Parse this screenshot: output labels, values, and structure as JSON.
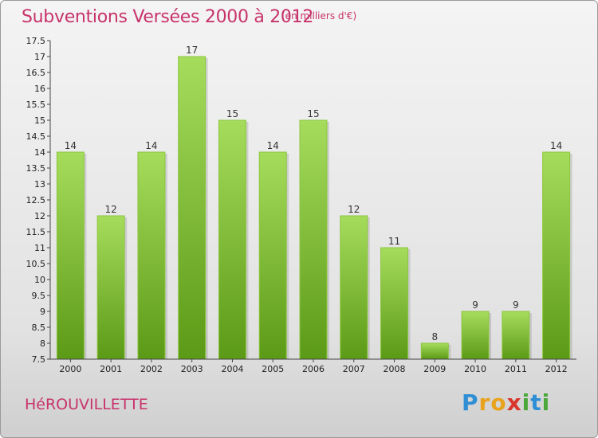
{
  "header": {
    "title": "Subventions Versées 2000 à 2012",
    "unit_note": "(en milliers d'€)"
  },
  "footer": {
    "commune": "HéROUVILLETTE",
    "logo_text": "Proxiti",
    "logo_letters": [
      {
        "char": "P",
        "color": "#2f8fd4"
      },
      {
        "char": "r",
        "color": "#e8a21b"
      },
      {
        "char": "o",
        "color": "#e8a21b"
      },
      {
        "char": "x",
        "color": "#d8362d"
      },
      {
        "char": "i",
        "color": "#4aa83a"
      },
      {
        "char": "t",
        "color": "#2f8fd4"
      },
      {
        "char": "i",
        "color": "#4aa83a"
      }
    ]
  },
  "colors": {
    "title": "#c8336b",
    "bar_top": "#a6dc5c",
    "bar_bottom": "#5b9a16",
    "axis": "#444444"
  },
  "chart_data": {
    "type": "bar",
    "categories": [
      "2000",
      "2001",
      "2002",
      "2003",
      "2004",
      "2005",
      "2006",
      "2007",
      "2008",
      "2009",
      "2010",
      "2011",
      "2012"
    ],
    "values": [
      14,
      12,
      14,
      17,
      15,
      14,
      15,
      12,
      11,
      8,
      9,
      9,
      14
    ],
    "ylim": [
      7.5,
      17.5
    ],
    "yticks": [
      "7.5",
      "8",
      "8.5",
      "9",
      "9.5",
      "10",
      "10.5",
      "11",
      "11.5",
      "12",
      "12.5",
      "13",
      "13.5",
      "14",
      "14.5",
      "15",
      "15.5",
      "16",
      "16.5",
      "17",
      "17.5"
    ],
    "ytick_values": [
      7.5,
      8,
      8.5,
      9,
      9.5,
      10,
      10.5,
      11,
      11.5,
      12,
      12.5,
      13,
      13.5,
      14,
      14.5,
      15,
      15.5,
      16,
      16.5,
      17,
      17.5
    ],
    "data_labels": true,
    "grid": false
  }
}
